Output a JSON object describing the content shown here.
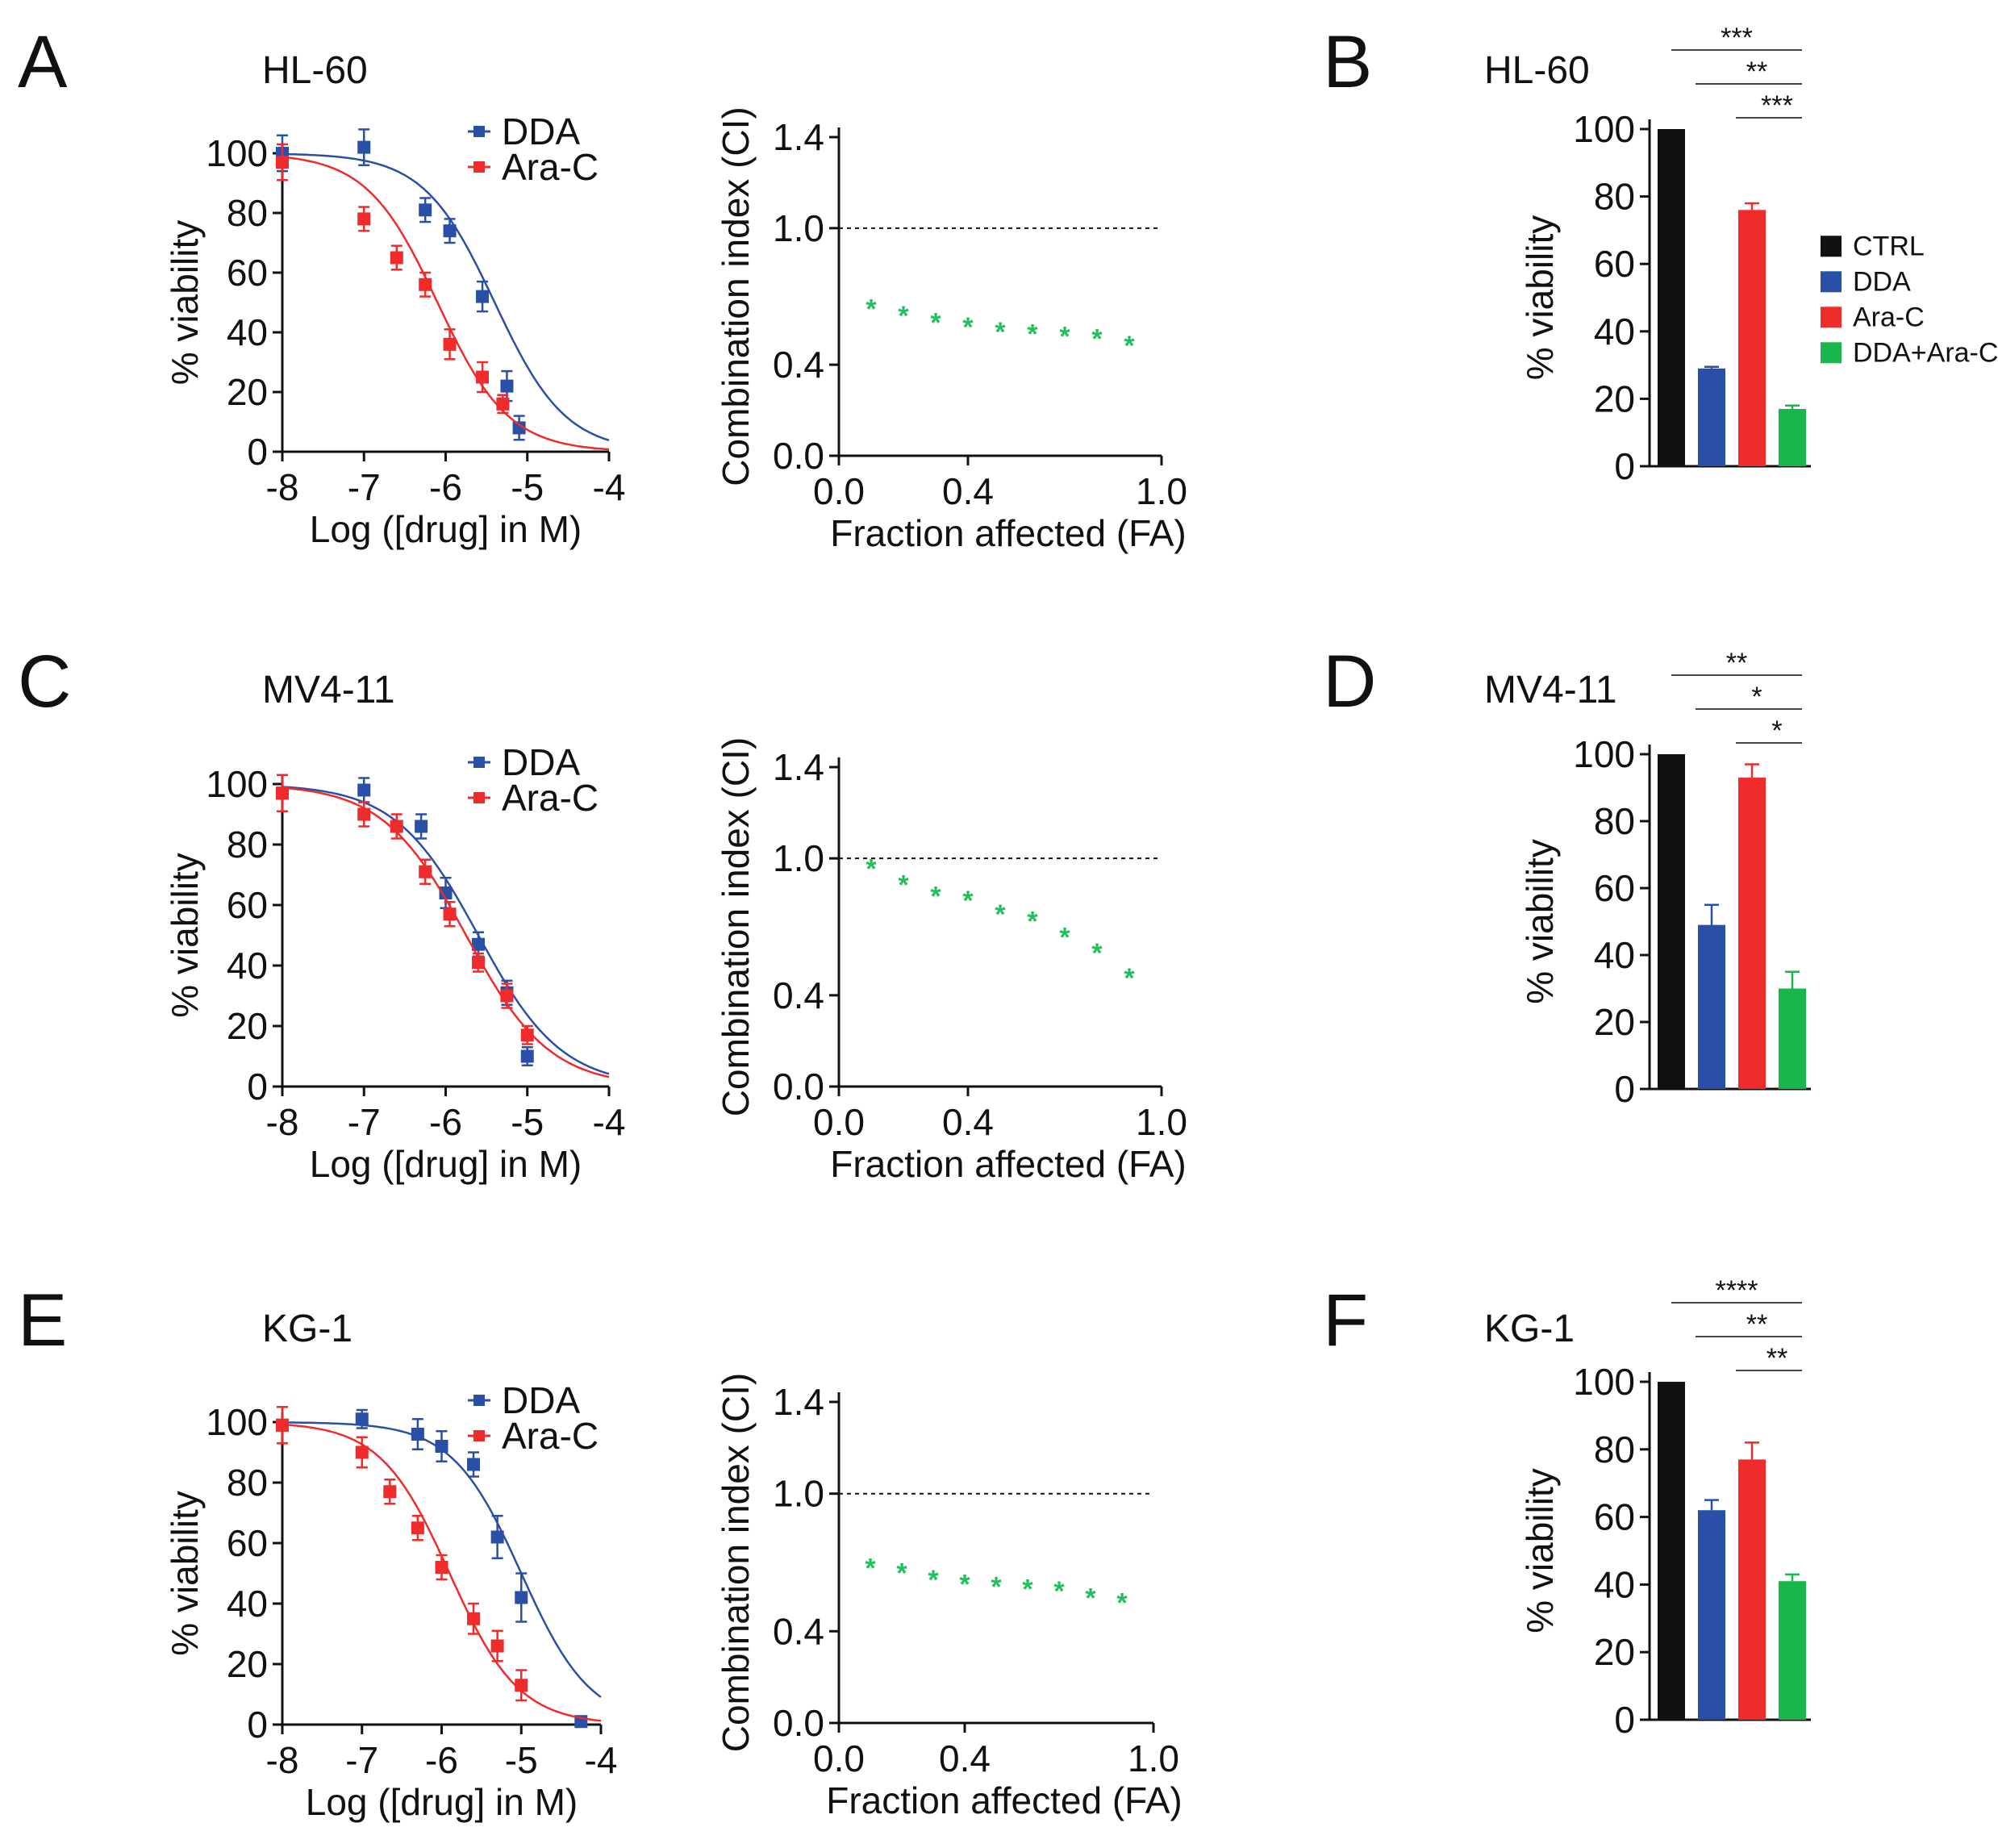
{
  "colors": {
    "DDA": "#2a4fa6",
    "Ara-C": "#ef2b2b",
    "CTRL": "#111111",
    "DDA+Ara-C": "#19b64b",
    "ci": "#20c05a"
  },
  "chart_data": [
    {
      "id": "A",
      "panel": "A",
      "cell_line": "HL-60",
      "type": "line",
      "xlabel": "Log ([drug] in M)",
      "ylabel": "% viability",
      "xlim": [
        -8,
        -4
      ],
      "ylim": [
        0,
        100
      ],
      "xticks": [
        "-8",
        "-7",
        "-6",
        "-5",
        "-4"
      ],
      "yticks": [
        "0",
        "20",
        "40",
        "60",
        "80",
        "100"
      ],
      "series": [
        {
          "name": "DDA",
          "ec50": -5.4,
          "hill": 1.0,
          "x": [
            -8,
            -7,
            -6.25,
            -5.95,
            -5.55,
            -5.25,
            -5.1
          ],
          "y": [
            100,
            102,
            81,
            74,
            52,
            22,
            8
          ],
          "err": [
            6,
            6,
            4,
            4,
            5,
            5,
            4
          ]
        },
        {
          "name": "Ara-C",
          "ec50": -6.1,
          "hill": 1.0,
          "x": [
            -8,
            -7,
            -6.6,
            -6.25,
            -5.95,
            -5.55,
            -5.3
          ],
          "y": [
            97,
            78,
            65,
            56,
            36,
            25,
            16
          ],
          "err": [
            6,
            4,
            4,
            4,
            5,
            5,
            3
          ]
        }
      ]
    },
    {
      "id": "A_ci",
      "type": "scatter",
      "xlabel": "Fraction affected (FA)",
      "ylabel": "Combination index (CI)",
      "xlim": [
        0,
        1.0
      ],
      "ylim": [
        0,
        1.4
      ],
      "xticks": [
        "0.0",
        "0.4",
        "1.0"
      ],
      "yticks": [
        "0.0",
        "0.4",
        "1.0",
        "1.4"
      ],
      "reference_line": 1.0,
      "x": [
        0.1,
        0.2,
        0.3,
        0.4,
        0.5,
        0.6,
        0.7,
        0.8,
        0.9
      ],
      "y": [
        0.65,
        0.62,
        0.59,
        0.57,
        0.55,
        0.54,
        0.53,
        0.52,
        0.49
      ]
    },
    {
      "id": "B",
      "panel": "B",
      "cell_line": "HL-60",
      "type": "bar",
      "ylabel": "% viability",
      "ylim": [
        0,
        100
      ],
      "yticks": [
        "0",
        "20",
        "40",
        "60",
        "80",
        "100"
      ],
      "categories": [
        "CTRL",
        "DDA",
        "Ara-C",
        "DDA+Ara-C"
      ],
      "legend": [
        "CTRL",
        "DDA",
        "Ara-C",
        "DDA+Ara-C"
      ],
      "values": [
        100,
        29,
        76,
        17
      ],
      "err": [
        0,
        0.5,
        2,
        1
      ],
      "significance": [
        {
          "from": 0,
          "to": 3,
          "label": "***"
        },
        {
          "from": 1,
          "to": 3,
          "label": "**"
        },
        {
          "from": 2,
          "to": 3,
          "label": "***"
        }
      ]
    },
    {
      "id": "C",
      "panel": "C",
      "cell_line": "MV4-11",
      "type": "line",
      "xlabel": "Log ([drug] in M)",
      "ylabel": "% viability",
      "xlim": [
        -8,
        -4
      ],
      "ylim": [
        0,
        100
      ],
      "xticks": [
        "-8",
        "-7",
        "-6",
        "-5",
        "-4"
      ],
      "yticks": [
        "0",
        "20",
        "40",
        "60",
        "80",
        "100"
      ],
      "series": [
        {
          "name": "DDA",
          "ec50": -5.6,
          "hill": 0.85,
          "x": [
            -8,
            -7,
            -6.3,
            -6.0,
            -5.6,
            -5.25,
            -5.0
          ],
          "y": [
            97,
            98,
            86,
            64,
            47,
            31,
            10
          ],
          "err": [
            6,
            4,
            4,
            5,
            4,
            4,
            3
          ]
        },
        {
          "name": "Ara-C",
          "ec50": -5.75,
          "hill": 0.85,
          "x": [
            -8,
            -7,
            -6.6,
            -6.25,
            -5.95,
            -5.6,
            -5.25,
            -5.0
          ],
          "y": [
            97,
            90,
            86,
            71,
            57,
            41,
            30,
            17
          ],
          "err": [
            6,
            4,
            4,
            4,
            4,
            3,
            4,
            3
          ]
        }
      ]
    },
    {
      "id": "C_ci",
      "type": "scatter",
      "xlabel": "Fraction affected (FA)",
      "ylabel": "Combination index (CI)",
      "xlim": [
        0,
        1.0
      ],
      "ylim": [
        0,
        1.4
      ],
      "xticks": [
        "0.0",
        "0.4",
        "1.0"
      ],
      "yticks": [
        "0.0",
        "0.4",
        "1.0",
        "1.4"
      ],
      "reference_line": 1.0,
      "x": [
        0.1,
        0.2,
        0.3,
        0.4,
        0.5,
        0.6,
        0.7,
        0.8,
        0.9
      ],
      "y": [
        0.96,
        0.89,
        0.84,
        0.82,
        0.76,
        0.73,
        0.66,
        0.59,
        0.48
      ]
    },
    {
      "id": "D",
      "panel": "D",
      "cell_line": "MV4-11",
      "type": "bar",
      "ylabel": "% viability",
      "ylim": [
        0,
        100
      ],
      "yticks": [
        "0",
        "20",
        "40",
        "60",
        "80",
        "100"
      ],
      "categories": [
        "CTRL",
        "DDA",
        "Ara-C",
        "DDA+Ara-C"
      ],
      "values": [
        100,
        49,
        93,
        30
      ],
      "err": [
        0,
        6,
        4,
        5
      ],
      "significance": [
        {
          "from": 0,
          "to": 3,
          "label": "**"
        },
        {
          "from": 1,
          "to": 3,
          "label": "*"
        },
        {
          "from": 2,
          "to": 3,
          "label": "*"
        }
      ]
    },
    {
      "id": "E",
      "panel": "E",
      "cell_line": "KG-1",
      "type": "line",
      "xlabel": "Log ([drug] in M)",
      "ylabel": "% viability",
      "xlim": [
        -8,
        -4
      ],
      "ylim": [
        0,
        100
      ],
      "xticks": [
        "-8",
        "-7",
        "-6",
        "-5",
        "-4"
      ],
      "yticks": [
        "0",
        "20",
        "40",
        "60",
        "80",
        "100"
      ],
      "series": [
        {
          "name": "DDA",
          "ec50": -5.0,
          "hill": 1.0,
          "x": [
            -8,
            -7,
            -6.3,
            -6.0,
            -5.6,
            -5.3,
            -5.0,
            -4.25
          ],
          "y": [
            99,
            101,
            96,
            92,
            86,
            62,
            42,
            1
          ],
          "err": [
            6,
            3,
            5,
            5,
            4,
            7,
            8,
            1
          ]
        },
        {
          "name": "Ara-C",
          "ec50": -5.9,
          "hill": 1.0,
          "x": [
            -8,
            -7,
            -6.65,
            -6.3,
            -6.0,
            -5.6,
            -5.3,
            -5.0
          ],
          "y": [
            99,
            90,
            77,
            65,
            52,
            35,
            26,
            13
          ],
          "err": [
            6,
            5,
            4,
            4,
            4,
            5,
            5,
            5
          ]
        }
      ]
    },
    {
      "id": "E_ci",
      "type": "scatter",
      "xlabel": "Fraction affected (FA)",
      "ylabel": "Combination index (CI)",
      "xlim": [
        0,
        1.0
      ],
      "ylim": [
        0,
        1.4
      ],
      "xticks": [
        "0.0",
        "0.4",
        "1.0"
      ],
      "yticks": [
        "0.0",
        "0.4",
        "1.0",
        "1.4"
      ],
      "reference_line": 1.0,
      "x": [
        0.1,
        0.2,
        0.3,
        0.4,
        0.5,
        0.6,
        0.7,
        0.8,
        0.9
      ],
      "y": [
        0.68,
        0.66,
        0.63,
        0.61,
        0.6,
        0.59,
        0.58,
        0.55,
        0.53
      ]
    },
    {
      "id": "F",
      "panel": "F",
      "cell_line": "KG-1",
      "type": "bar",
      "ylabel": "% viability",
      "ylim": [
        0,
        100
      ],
      "yticks": [
        "0",
        "20",
        "40",
        "60",
        "80",
        "100"
      ],
      "categories": [
        "CTRL",
        "DDA",
        "Ara-C",
        "DDA+Ara-C"
      ],
      "values": [
        100,
        62,
        77,
        41
      ],
      "err": [
        0,
        3,
        5,
        2
      ],
      "significance": [
        {
          "from": 0,
          "to": 3,
          "label": "****"
        },
        {
          "from": 1,
          "to": 3,
          "label": "**"
        },
        {
          "from": 2,
          "to": 3,
          "label": "**"
        }
      ]
    }
  ]
}
